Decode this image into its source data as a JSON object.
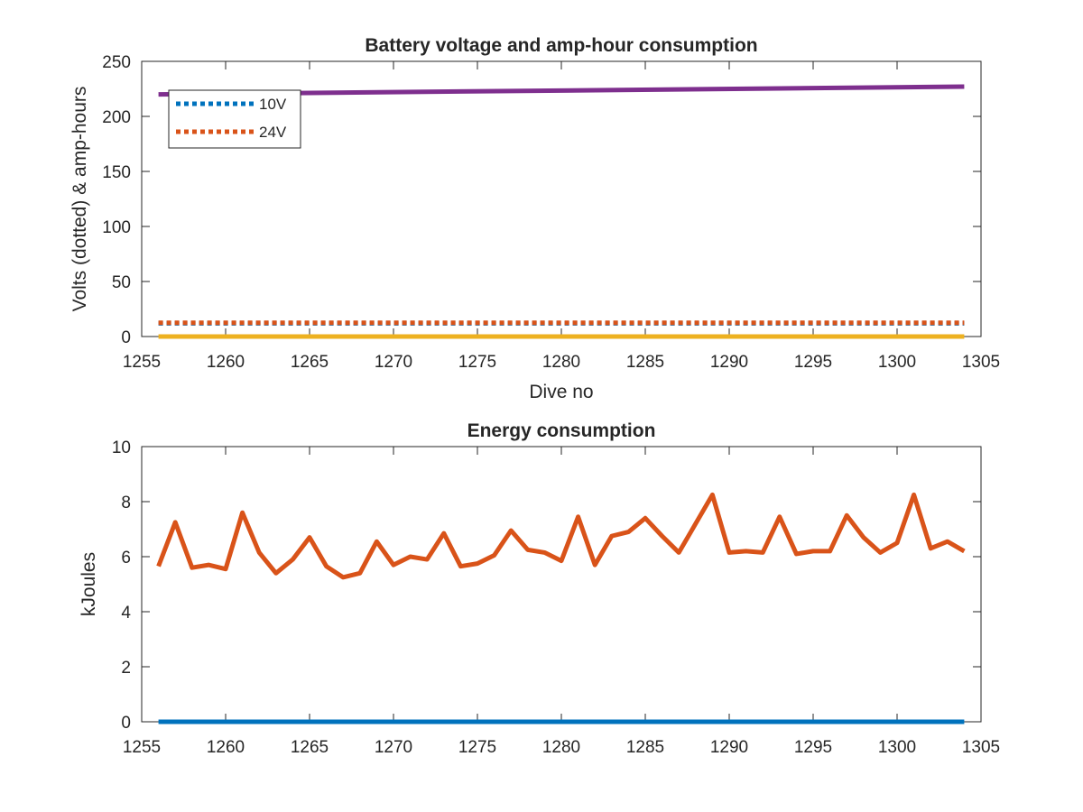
{
  "colors": {
    "blue": "#0072bd",
    "orange": "#d95319",
    "yellow": "#edb120",
    "purple": "#7e2f8e",
    "axis": "#262626"
  },
  "chart_data": [
    {
      "type": "line",
      "title": "Battery voltage and amp-hour consumption",
      "xlabel": "Dive no",
      "ylabel": "Volts (dotted) & amp-hours",
      "xlim": [
        1255,
        1305
      ],
      "ylim": [
        0,
        250
      ],
      "xticks": [
        1255,
        1260,
        1265,
        1270,
        1275,
        1280,
        1285,
        1290,
        1295,
        1300,
        1305
      ],
      "yticks": [
        0,
        50,
        100,
        150,
        200,
        250
      ],
      "legend": {
        "placement": "top-left",
        "entries": [
          "10V",
          "24V"
        ]
      },
      "series": [
        {
          "name": "10V",
          "style": "dotted",
          "color": "#0072bd",
          "x": [
            1256,
            1304
          ],
          "values": [
            12,
            12
          ]
        },
        {
          "name": "24V",
          "style": "dotted",
          "color": "#d95319",
          "x": [
            1256,
            1304
          ],
          "values": [
            12.5,
            12.5
          ]
        },
        {
          "style": "solid",
          "color": "#edb120",
          "x": [
            1256,
            1304
          ],
          "values": [
            0,
            0
          ]
        },
        {
          "style": "solid",
          "color": "#7e2f8e",
          "x": [
            1256,
            1304
          ],
          "values": [
            220,
            227
          ]
        }
      ]
    },
    {
      "type": "line",
      "title": "Energy consumption",
      "xlabel": "",
      "ylabel": "kJoules",
      "xlim": [
        1255,
        1305
      ],
      "ylim": [
        0,
        10
      ],
      "xticks": [
        1255,
        1260,
        1265,
        1270,
        1275,
        1280,
        1285,
        1290,
        1295,
        1300,
        1305
      ],
      "yticks": [
        0,
        2,
        4,
        6,
        8,
        10
      ],
      "series": [
        {
          "style": "solid",
          "color": "#d95319",
          "x": [
            1256,
            1257,
            1258,
            1259,
            1260,
            1261,
            1262,
            1263,
            1264,
            1265,
            1266,
            1267,
            1268,
            1269,
            1270,
            1271,
            1272,
            1273,
            1274,
            1275,
            1276,
            1277,
            1278,
            1279,
            1280,
            1281,
            1282,
            1283,
            1284,
            1285,
            1286,
            1287,
            1288,
            1289,
            1290,
            1291,
            1292,
            1293,
            1294,
            1295,
            1296,
            1297,
            1298,
            1299,
            1300,
            1301,
            1302,
            1303,
            1304
          ],
          "values": [
            5.65,
            7.25,
            5.6,
            5.7,
            5.55,
            7.6,
            6.15,
            5.4,
            5.9,
            6.7,
            5.65,
            5.25,
            5.4,
            6.55,
            5.7,
            6.0,
            5.9,
            6.85,
            5.65,
            5.75,
            6.05,
            6.95,
            6.25,
            6.15,
            5.85,
            7.45,
            5.7,
            6.75,
            6.9,
            7.4,
            6.75,
            6.15,
            7.2,
            8.25,
            6.15,
            6.2,
            6.15,
            7.45,
            6.1,
            6.2,
            6.2,
            7.5,
            6.7,
            6.15,
            6.5,
            8.25,
            6.3,
            6.55,
            6.2
          ]
        },
        {
          "style": "solid",
          "color": "#0072bd",
          "x": [
            1256,
            1304
          ],
          "values": [
            0,
            0
          ]
        }
      ]
    }
  ]
}
